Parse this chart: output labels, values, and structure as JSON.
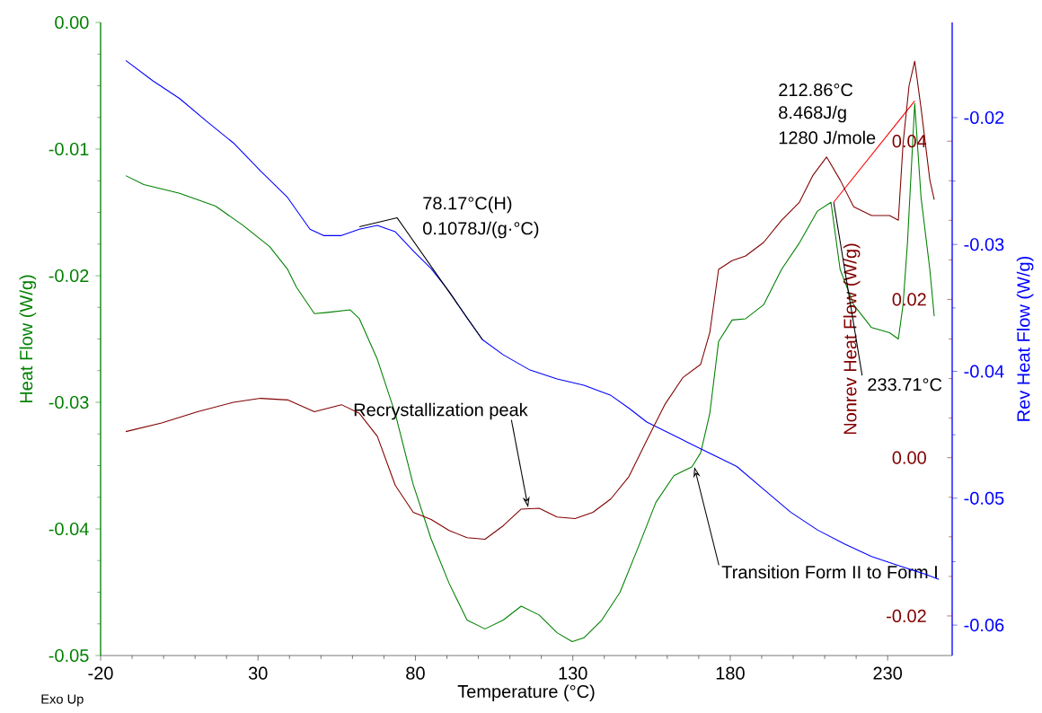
{
  "chart_data": {
    "type": "line",
    "xlabel": "Temperature (°C)",
    "ylabel": "Heat Flow (W/g)",
    "y2label": "Rev Heat Flow (W/g)",
    "y3label": "Nonrev Heat Flow (W/g)",
    "xlim": [
      -20,
      250.5
    ],
    "xticks": [
      -20,
      30,
      80,
      130,
      180,
      230
    ],
    "ylim": [
      -0.05,
      0.0
    ],
    "yticks": [
      -0.05,
      -0.04,
      -0.03,
      -0.02,
      -0.01,
      {
        "value": 0,
        "label": "0.00"
      }
    ],
    "y2lim": [
      -0.0624,
      -0.0125
    ],
    "y2ticks": [
      -0.06,
      -0.05,
      -0.04,
      -0.03,
      -0.02
    ],
    "y3lim": [
      -0.025,
      0.055
    ],
    "y3ticks": [
      -0.02,
      {
        "value": 0,
        "label": "0.00"
      },
      0.02,
      0.04
    ],
    "series": [
      {
        "color": "#008000",
        "x": [
          -12.0,
          -6.3,
          5.1,
          16.5,
          25.1,
          33.7,
          39.4,
          42.2,
          47.9,
          52.2,
          59.3,
          62.2,
          67.9,
          73.6,
          79.3,
          85.0,
          90.7,
          96.4,
          102.1,
          107.9,
          113.6,
          119.3,
          125.0,
          129.8,
          133.5,
          139.2,
          145.0,
          150.7,
          156.4,
          162.1,
          167.8,
          170.6,
          173.5,
          176.3,
          180.6,
          184.9,
          190.6,
          196.3,
          202.0,
          207.7,
          212.0,
          214.9,
          219.2,
          224.9,
          230.6,
          233.4,
          234.9,
          236.3,
          238.6,
          240.6,
          243.4,
          244.8
        ],
        "values": [
          -0.0121,
          -0.0128,
          -0.0135,
          -0.0145,
          -0.016,
          -0.0177,
          -0.0195,
          -0.0209,
          -0.023,
          -0.0229,
          -0.0227,
          -0.0234,
          -0.0266,
          -0.0309,
          -0.0365,
          -0.0408,
          -0.0443,
          -0.0472,
          -0.0479,
          -0.0472,
          -0.0461,
          -0.0468,
          -0.0482,
          -0.0489,
          -0.0486,
          -0.0472,
          -0.045,
          -0.0415,
          -0.0379,
          -0.0358,
          -0.0351,
          -0.034,
          -0.0309,
          -0.0252,
          -0.0235,
          -0.0234,
          -0.0223,
          -0.0195,
          -0.0174,
          -0.0149,
          -0.0142,
          -0.0195,
          -0.0223,
          -0.0241,
          -0.0245,
          -0.025,
          -0.0223,
          -0.0174,
          -0.0064,
          -0.0138,
          -0.0195,
          -0.0232
        ]
      },
      {
        "color": "#0000ff",
        "axis": "y2",
        "x": [
          -12.0,
          -3.4,
          5.1,
          13.7,
          22.2,
          30.8,
          39.4,
          46.5,
          50.8,
          56.5,
          62.2,
          67.9,
          73.6,
          79.3,
          85.0,
          90.7,
          96.4,
          101.3,
          107.9,
          116.4,
          125.0,
          133.5,
          142.1,
          147.8,
          153.5,
          159.2,
          164.9,
          170.6,
          176.3,
          182.1,
          190.6,
          199.2,
          207.7,
          216.3,
          224.9,
          233.4,
          242.0,
          246.3
        ],
        "values": [
          -0.0155,
          -0.0171,
          -0.0185,
          -0.0203,
          -0.022,
          -0.0242,
          -0.0263,
          -0.0288,
          -0.0293,
          -0.0293,
          -0.0288,
          -0.0285,
          -0.029,
          -0.0305,
          -0.0319,
          -0.0337,
          -0.0358,
          -0.0375,
          -0.0387,
          -0.0399,
          -0.0406,
          -0.0411,
          -0.0419,
          -0.0429,
          -0.044,
          -0.0447,
          -0.0454,
          -0.0461,
          -0.0468,
          -0.0475,
          -0.0493,
          -0.0511,
          -0.0525,
          -0.0536,
          -0.0546,
          -0.0553,
          -0.056,
          -0.0564
        ]
      },
      {
        "color": "#000000",
        "axis": "y2",
        "x": [
          62.2,
          74.2,
          101.3
        ],
        "values": [
          -0.0286,
          -0.0279,
          -0.0375
        ]
      },
      {
        "color": "#ff0000",
        "x": [
          212.86,
          238.6
        ],
        "values": [
          -0.0142,
          -0.0062
        ]
      },
      {
        "color": "#800000",
        "axis": "y3",
        "x": [
          -12.0,
          -0.6,
          10.8,
          22.2,
          30.8,
          39.4,
          47.9,
          56.5,
          62.2,
          67.9,
          73.6,
          79.3,
          85.0,
          90.7,
          96.4,
          102.1,
          107.9,
          113.6,
          119.3,
          125.0,
          130.7,
          136.4,
          142.1,
          147.8,
          153.5,
          159.2,
          164.9,
          170.6,
          173.5,
          176.3,
          180.6,
          184.9,
          190.6,
          196.3,
          202.0,
          206.3,
          210.6,
          214.9,
          219.2,
          224.9,
          230.6,
          233.4,
          234.9,
          236.8,
          238.6,
          240.6,
          243.4,
          244.8
        ],
        "values": [
          0.0033,
          0.0044,
          0.0058,
          0.007,
          0.0075,
          0.0073,
          0.0058,
          0.0067,
          0.0056,
          0.0027,
          -0.0035,
          -0.0069,
          -0.0078,
          -0.0092,
          -0.0101,
          -0.0103,
          -0.0086,
          -0.0065,
          -0.0064,
          -0.0075,
          -0.0077,
          -0.0069,
          -0.0052,
          -0.0024,
          0.0022,
          0.0067,
          0.0101,
          0.0118,
          0.0158,
          0.0238,
          0.0249,
          0.0255,
          0.0272,
          0.03,
          0.0323,
          0.0357,
          0.038,
          0.0351,
          0.0317,
          0.0306,
          0.0306,
          0.03,
          0.0397,
          0.047,
          0.0501,
          0.0442,
          0.0351,
          0.0326
        ]
      }
    ],
    "annotations": [
      "78.17°C(H)",
      "0.1078J/(g·°C)",
      "212.86°C",
      "8.468J/g",
      "1280 J/mole",
      {
        "text": "233.71°C",
        "x": 212.86,
        "y": -0.0142
      },
      {
        "text": "Recrystallization peak",
        "x": 115.8,
        "y": -0.0383
      },
      {
        "text": "Transition Form II to Form I",
        "x": 168.6,
        "y": -0.0351
      },
      "Exo Up"
    ]
  }
}
